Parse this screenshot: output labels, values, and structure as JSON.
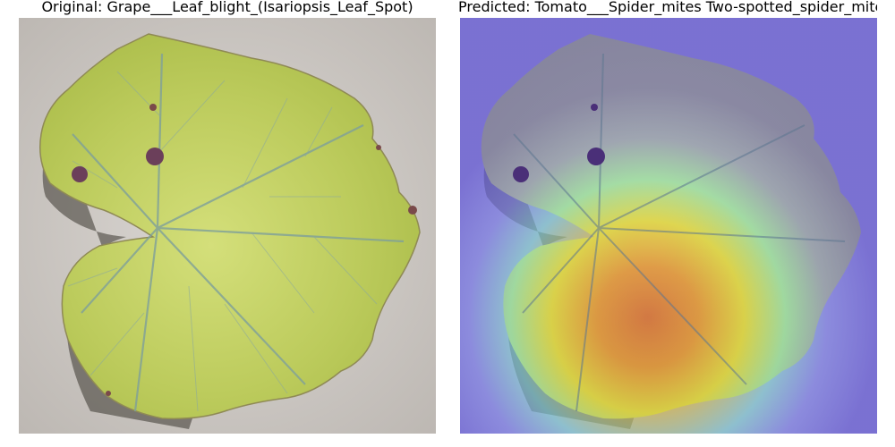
{
  "panels": [
    {
      "title": "Original: Grape___Leaf_blight_(Isariopsis_Leaf_Spot)",
      "image": "grape leaf photo on concrete"
    },
    {
      "title": "Predicted: Tomato___Spider_mites Two-spotted_spider_mite",
      "image": "grape leaf photo with heatmap overlay"
    }
  ],
  "colors": {
    "leaf_light": "#c8d66a",
    "leaf_dark": "#9fb24a",
    "vein": "#7fa09a",
    "background": "#d4d0cc",
    "heat_low": "#5a4bd6",
    "heat_mid": "#8ee0e0",
    "heat_high": "#e8452a"
  }
}
